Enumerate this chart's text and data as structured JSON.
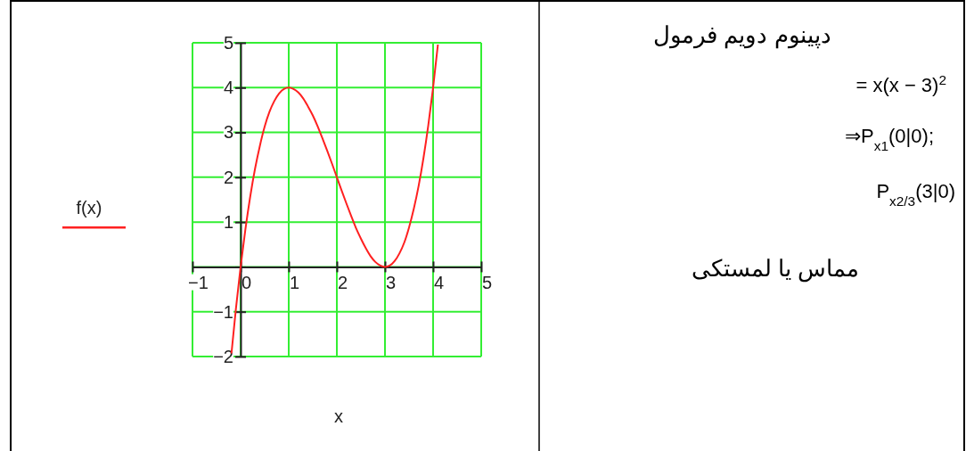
{
  "chart_data": {
    "type": "line",
    "xlabel": "x",
    "ylabel": "f(x)",
    "x": [
      -0.19,
      -0.1,
      0,
      0.1,
      0.2,
      0.3,
      0.4,
      0.5,
      0.6,
      0.7,
      0.8,
      0.9,
      1,
      1.1,
      1.2,
      1.3,
      1.4,
      1.5,
      1.6,
      1.7,
      1.8,
      1.9,
      2,
      2.1,
      2.2,
      2.3,
      2.4,
      2.5,
      2.6,
      2.7,
      2.8,
      2.9,
      3,
      3.1,
      3.2,
      3.3,
      3.4,
      3.5,
      3.6,
      3.7,
      3.8,
      3.9,
      4,
      4.1
    ],
    "series": [
      {
        "color": "#ff2020",
        "values": [
          -1.93,
          -0.96,
          0,
          0.84,
          1.57,
          2.19,
          2.7,
          3.13,
          3.46,
          3.7,
          3.87,
          3.97,
          4,
          3.97,
          3.89,
          3.76,
          3.58,
          3.38,
          3.14,
          2.87,
          2.59,
          2.3,
          2,
          1.7,
          1.41,
          1.13,
          0.86,
          0.63,
          0.42,
          0.24,
          0.11,
          0.03,
          0,
          0.03,
          0.13,
          0.3,
          0.54,
          0.88,
          1.3,
          1.81,
          2.43,
          3.16,
          4,
          4.96
        ]
      }
    ],
    "xlim": [
      -1,
      5
    ],
    "ylim": [
      -2,
      5
    ],
    "xticks": [
      {
        "value": -1,
        "label": "−1"
      },
      0,
      1,
      2,
      3,
      4,
      5
    ],
    "yticks": [
      {
        "value": -2,
        "label": "−2"
      },
      {
        "value": -1,
        "label": "−1"
      },
      {
        "value": 0,
        "label": null
      },
      1,
      2,
      3,
      4,
      5
    ],
    "grid": true,
    "annotations": [
      "دپینوم دویم فرمول",
      "= x(x − 3)$^{2}$",
      "⇒P$_{x1}$(0|0);",
      "P$_{x2/3}$(3|0)",
      "مماس یا لمستکی"
    ]
  }
}
